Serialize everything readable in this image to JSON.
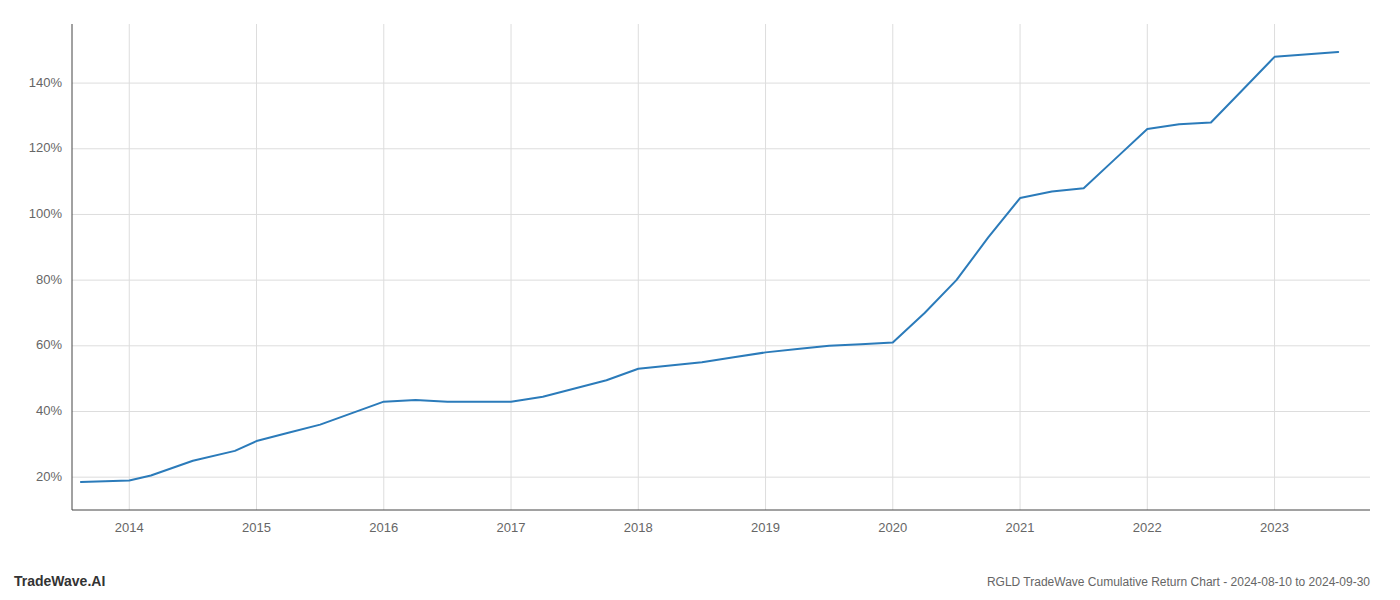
{
  "chart_data": {
    "type": "line",
    "title": "RGLD TradeWave Cumulative Return Chart - 2024-08-10 to 2024-09-30",
    "annotations": [
      "TradeWave.AI"
    ],
    "x": [
      2013.62,
      2014.0,
      2014.17,
      2014.5,
      2014.83,
      2015.0,
      2015.25,
      2015.5,
      2015.75,
      2016.0,
      2016.25,
      2016.5,
      2016.75,
      2017.0,
      2017.25,
      2017.5,
      2017.75,
      2018.0,
      2018.25,
      2018.5,
      2018.75,
      2019.0,
      2019.25,
      2019.5,
      2019.75,
      2020.0,
      2020.25,
      2020.5,
      2020.75,
      2021.0,
      2021.25,
      2021.5,
      2021.75,
      2022.0,
      2022.25,
      2022.5,
      2022.75,
      2023.0,
      2023.5
    ],
    "values": [
      18.5,
      19.0,
      20.5,
      25.0,
      28.0,
      31.0,
      33.5,
      36.0,
      39.5,
      43.0,
      43.5,
      43.0,
      43.0,
      43.0,
      44.5,
      47.0,
      49.5,
      53.0,
      54.0,
      55.0,
      56.5,
      58.0,
      59.0,
      60.0,
      60.5,
      61.0,
      70.0,
      80.0,
      93.0,
      105.0,
      107.0,
      108.0,
      117.0,
      126.0,
      127.5,
      128.0,
      138.0,
      148.0,
      149.5
    ],
    "color": "#2b7bba",
    "xlim": [
      2013.55,
      2023.75
    ],
    "ylim": [
      10,
      158
    ],
    "xticks": [
      2014,
      2015,
      2016,
      2017,
      2018,
      2019,
      2020,
      2021,
      2022,
      2023
    ],
    "yticks": [
      {
        "value": 20,
        "label": "20%"
      },
      {
        "value": 40,
        "label": "40%"
      },
      {
        "value": 60,
        "label": "60%"
      },
      {
        "value": 80,
        "label": "80%"
      },
      {
        "value": 100,
        "label": "100%"
      },
      {
        "value": 120,
        "label": "120%"
      },
      {
        "value": 140,
        "label": "140%"
      }
    ],
    "grid": true
  }
}
